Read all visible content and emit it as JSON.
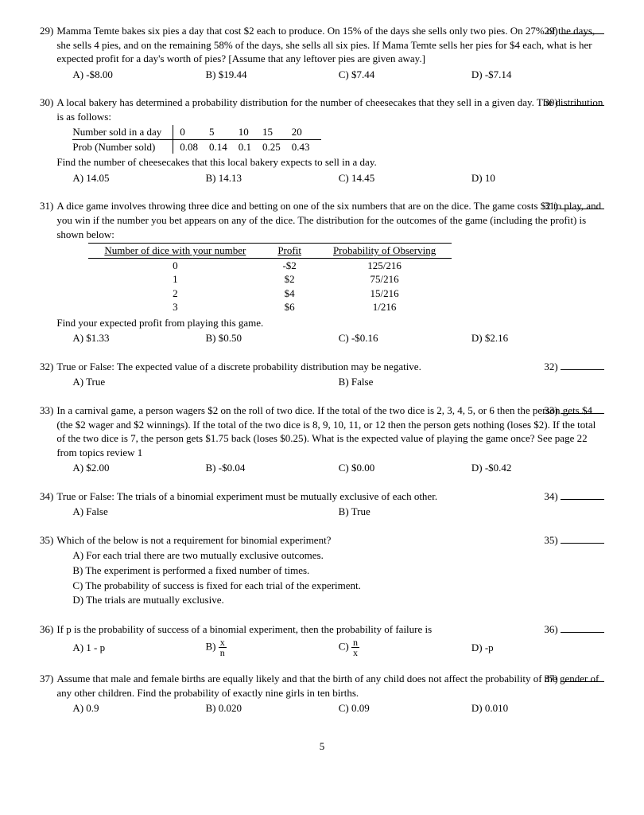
{
  "page_number": "5",
  "questions": [
    {
      "num": "29)",
      "text": "Mamma Temte bakes six pies a day that cost $2 each to produce. On 15% of the days she sells only two pies. On 27% of the days, she sells 4 pies, and on the remaining 58% of the days, she sells all six pies. If Mama Temte sells her pies for $4 each, what is her expected profit for a day's worth of pies? [Assume that any leftover pies are given away.]",
      "slot": "29)",
      "choices_row": [
        "A) -$8.00",
        "B) $19.44",
        "C) $7.44",
        "D) -$7.14"
      ]
    },
    {
      "num": "30)",
      "text": "A local bakery has determined a probability distribution for the number of cheesecakes that they sell in a given day. The distribution is as follows:",
      "slot": "30)",
      "table30": {
        "row1": [
          "Number sold in a day",
          "0",
          "5",
          "10",
          "15",
          "20"
        ],
        "row2": [
          "Prob (Number sold)",
          "0.08",
          "0.14",
          "0.1",
          "0.25",
          "0.43"
        ]
      },
      "after": "Find the number of cheesecakes that this local bakery expects to sell in a day.",
      "choices_row": [
        "A) 14.05",
        "B) 14.13",
        "C) 14.45",
        "D) 10"
      ]
    },
    {
      "num": "31)",
      "text": "A dice game involves throwing three dice and betting on one of the six numbers that are on the dice. The game costs $2 to play, and you win if the number you bet appears on any of the dice. The distribution for the outcomes of the game (including the profit) is shown below:",
      "slot": "31)",
      "table31": {
        "head": [
          "Number of dice with your number",
          "Profit",
          "Probability of Observing"
        ],
        "rows": [
          [
            "0",
            "-$2",
            "125/216"
          ],
          [
            "1",
            "$2",
            "75/216"
          ],
          [
            "2",
            "$4",
            "15/216"
          ],
          [
            "3",
            "$6",
            "1/216"
          ]
        ]
      },
      "after": "Find your expected profit from playing this game.",
      "choices_row": [
        "A) $1.33",
        "B) $0.50",
        "C) -$0.16",
        "D) $2.16"
      ]
    },
    {
      "num": "32)",
      "text": "True or False:  The expected value of a discrete probability distribution may be negative.",
      "slot": "32)",
      "choices_row2": [
        "A) True",
        "B) False"
      ]
    },
    {
      "num": "33)",
      "text": "In a carnival game, a person wagers $2 on the roll of two dice.  If the total of the two dice is 2, 3, 4, 5, or 6 then the person gets $4 (the $2 wager and $2 winnings).  If the total of the two dice is 8, 9, 10, 11, or 12 then the person gets nothing (loses $2).  If the total of the two dice is 7, the person gets $1.75  back (loses $0.25).  What is the expected value of playing the game once?  See page 22 from topics review 1",
      "slot": "33)",
      "choices_row": [
        "A) $2.00",
        "B) -$0.04",
        "C) $0.00",
        "D) -$0.42"
      ]
    },
    {
      "num": "34)",
      "text": "True or False:  The trials of a binomial experiment must be mutually exclusive of each other.",
      "slot": "34)",
      "choices_row2": [
        "A) False",
        "B) True"
      ]
    },
    {
      "num": "35)",
      "text": "Which of the below is not a requirement for binomial experiment?",
      "slot": "35)",
      "choices_col": [
        "A) For each trial there are two mutually exclusive outcomes.",
        "B) The experiment is performed a fixed number of times.",
        "C) The probability of success is fixed for each trial of the experiment.",
        "D) The trials are mutually exclusive."
      ]
    },
    {
      "num": "36)",
      "text": "If p is the probability of success of a binomial experiment, then the probability of failure is",
      "slot": "36)",
      "choices_frac": {
        "a": "A) 1 - p",
        "b_label": "B) ",
        "b_top": "x",
        "b_bot": "n",
        "c_label": "C) ",
        "c_top": "n",
        "c_bot": "x",
        "d": "D) -p"
      }
    },
    {
      "num": "37)",
      "text": "Assume that male and female births are equally likely and that the birth of any child does not affect the probability of the gender of any other children. Find the probability of exactly nine girls in ten births.",
      "slot": "37)",
      "choices_row": [
        "A) 0.9",
        "B) 0.020",
        "C) 0.09",
        "D) 0.010"
      ]
    }
  ]
}
